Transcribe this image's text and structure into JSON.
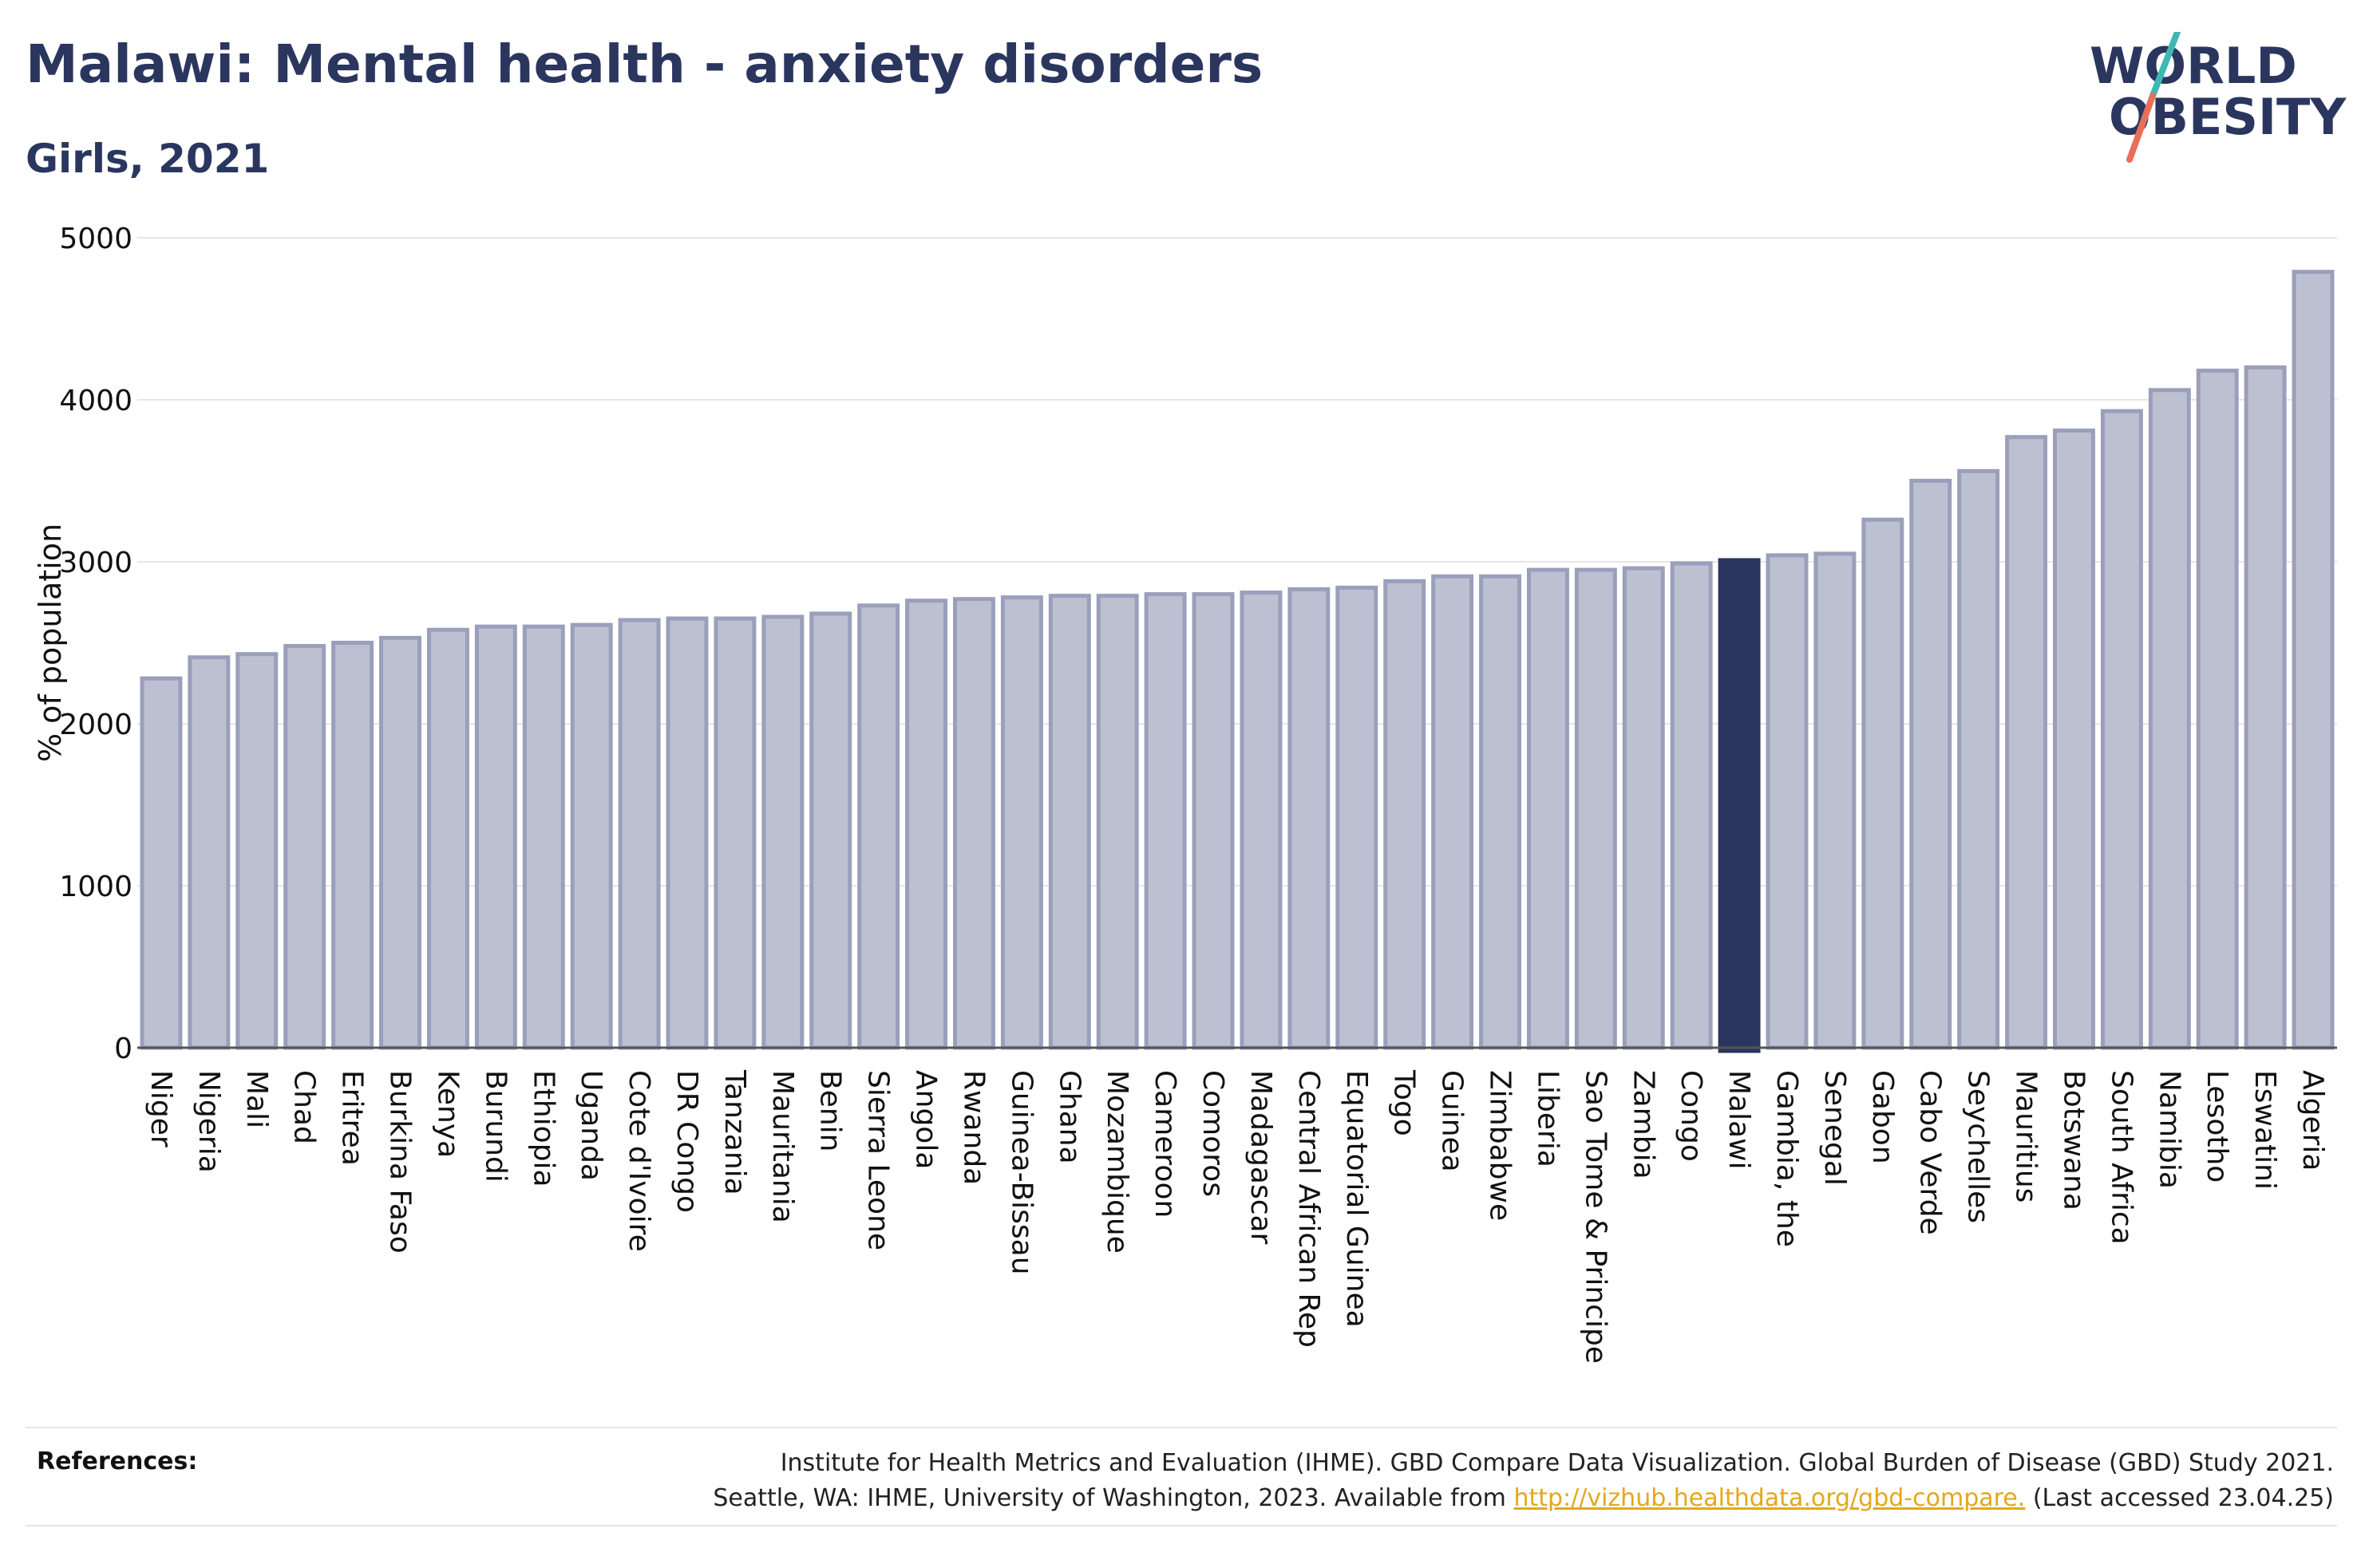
{
  "header": {
    "title": "Malawi: Mental health - anxiety disorders",
    "subtitle": "Girls, 2021"
  },
  "logo": {
    "line1": "WORLD",
    "line2": "OBESITY"
  },
  "colors": {
    "bar": "#bcc0d0",
    "bar_border": "#9a9fbb",
    "highlight": "#2b365f",
    "grid": "#e6e6e6",
    "title": "#2b365f",
    "link": "#e3a81b",
    "logo_teal": "#3fb8b3",
    "logo_coral": "#e8705a"
  },
  "chart_data": {
    "type": "bar",
    "ylabel": "% of population",
    "ylim": [
      0,
      5000
    ],
    "yticks": [
      0,
      1000,
      2000,
      3000,
      4000,
      5000
    ],
    "highlight": "Malawi",
    "grid": true,
    "categories": [
      "Niger",
      "Nigeria",
      "Mali",
      "Chad",
      "Eritrea",
      "Burkina Faso",
      "Kenya",
      "Burundi",
      "Ethiopia",
      "Uganda",
      "Cote d'Ivoire",
      "DR Congo",
      "Tanzania",
      "Mauritania",
      "Benin",
      "Sierra Leone",
      "Angola",
      "Rwanda",
      "Guinea-Bissau",
      "Ghana",
      "Mozambique",
      "Cameroon",
      "Comoros",
      "Madagascar",
      "Central African Rep",
      "Equatorial Guinea",
      "Togo",
      "Guinea",
      "Zimbabwe",
      "Liberia",
      "Sao Tome & Principe",
      "Zambia",
      "Congo",
      "Malawi",
      "Gambia, the",
      "Senegal",
      "Gabon",
      "Cabo Verde",
      "Seychelles",
      "Mauritius",
      "Botswana",
      "South Africa",
      "Namibia",
      "Lesotho",
      "Eswatini",
      "Algeria"
    ],
    "values": [
      2280,
      2410,
      2430,
      2480,
      2500,
      2530,
      2580,
      2600,
      2600,
      2610,
      2640,
      2650,
      2650,
      2660,
      2680,
      2730,
      2760,
      2770,
      2780,
      2790,
      2790,
      2800,
      2800,
      2810,
      2830,
      2840,
      2880,
      2910,
      2910,
      2950,
      2950,
      2960,
      2990,
      3010,
      3040,
      3050,
      3260,
      3500,
      3560,
      3770,
      3810,
      3930,
      4060,
      4180,
      4200,
      4790
    ]
  },
  "references": {
    "label": "References:",
    "line1": "Institute for Health Metrics and Evaluation (IHME). GBD Compare Data Visualization. Global Burden of Disease (GBD) Study 2021.",
    "line2_before": "Seattle, WA: IHME, University of Washington, 2023. Available from ",
    "link": "http://vizhub.healthdata.org/gbd-compare.",
    "line2_after": " (Last accessed 23.04.25)"
  }
}
